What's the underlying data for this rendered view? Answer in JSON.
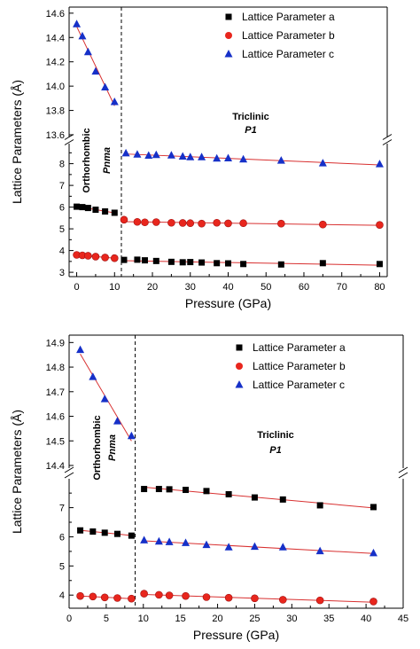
{
  "chart_data": [
    {
      "type": "scatter",
      "xlabel": "Pressure (GPa)",
      "ylabel": "Lattice Parameters (Å)",
      "xlim": [
        -2,
        82
      ],
      "x_ticks": [
        "0",
        "10",
        "20",
        "30",
        "40",
        "50",
        "60",
        "70",
        "80"
      ],
      "y_lower_range": [
        2.8,
        8.8
      ],
      "y_upper_range": [
        13.6,
        14.65
      ],
      "y_lower_ticks": [
        "3",
        "4",
        "5",
        "6",
        "7",
        "8"
      ],
      "y_upper_ticks": [
        "13.6",
        "13.8",
        "14.0",
        "14.2",
        "14.4",
        "14.6"
      ],
      "transition_pressure": 11.8,
      "phase_left": {
        "name": "Orthorhombic",
        "group": "Pnma"
      },
      "phase_right": {
        "name": "Triclinic",
        "group": "P1"
      },
      "legend_position": "top-right",
      "series": [
        {
          "name": "Lattice Parameter a",
          "marker": "square",
          "color": "#000000",
          "x": [
            0,
            1.5,
            3,
            5,
            7.5,
            10,
            12.5,
            16,
            18,
            21,
            25,
            28,
            30,
            33,
            37,
            40,
            44,
            54,
            65,
            80
          ],
          "y": [
            6.02,
            6.0,
            5.96,
            5.88,
            5.8,
            5.74,
            3.57,
            3.58,
            3.55,
            3.52,
            3.48,
            3.46,
            3.47,
            3.45,
            3.42,
            3.41,
            3.38,
            3.36,
            3.42,
            3.38
          ]
        },
        {
          "name": "Lattice Parameter b",
          "marker": "circle",
          "color": "#e8261d",
          "x": [
            0,
            1.5,
            3,
            5,
            7.5,
            10,
            12.5,
            16,
            18,
            21,
            25,
            28,
            30,
            33,
            37,
            40,
            44,
            54,
            65,
            80
          ],
          "y": [
            3.8,
            3.78,
            3.76,
            3.72,
            3.68,
            3.65,
            5.42,
            5.32,
            5.3,
            5.31,
            5.28,
            5.27,
            5.26,
            5.24,
            5.28,
            5.25,
            5.26,
            5.24,
            5.2,
            5.18
          ]
        },
        {
          "name": "Lattice Parameter c",
          "marker": "triangle",
          "color": "#1630c8",
          "x": [
            0,
            1.5,
            3,
            5,
            7.5,
            10,
            13,
            16,
            19,
            21,
            25,
            28,
            30,
            33,
            37,
            40,
            44,
            54,
            65,
            80
          ],
          "y": [
            14.51,
            14.41,
            14.28,
            14.12,
            13.99,
            13.87,
            8.48,
            8.42,
            8.37,
            8.4,
            8.38,
            8.33,
            8.3,
            8.3,
            8.24,
            8.25,
            8.2,
            8.14,
            8.02,
            7.98
          ]
        }
      ]
    },
    {
      "type": "scatter",
      "xlabel": "Pressure (GPa)",
      "ylabel": "Lattice Parameters (Å)",
      "xlim": [
        0,
        45
      ],
      "x_ticks": [
        "0",
        "5",
        "10",
        "15",
        "20",
        "25",
        "30",
        "35",
        "40",
        "45"
      ],
      "y_lower_range": [
        3.55,
        7.9
      ],
      "y_upper_range": [
        14.4,
        14.93
      ],
      "y_lower_ticks": [
        "4",
        "5",
        "6",
        "7"
      ],
      "y_upper_ticks": [
        "14.4",
        "14.5",
        "14.6",
        "14.7",
        "14.8",
        "14.9"
      ],
      "transition_pressure": 8.9,
      "phase_left": {
        "name": "Orthorhombic",
        "group": "Pnma"
      },
      "phase_right": {
        "name": "Triclinic",
        "group": "P1"
      },
      "legend_position": "top-right",
      "series": [
        {
          "name": "Lattice Parameter a",
          "marker": "square",
          "color": "#000000",
          "x": [
            1.5,
            3.2,
            4.8,
            6.5,
            8.4,
            10.1,
            12.1,
            13.5,
            15.7,
            18.5,
            21.5,
            25.0,
            28.8,
            33.8,
            41.0
          ],
          "y": [
            6.22,
            6.18,
            6.14,
            6.1,
            6.04,
            7.64,
            7.64,
            7.63,
            7.61,
            7.57,
            7.46,
            7.35,
            7.28,
            7.08,
            7.02
          ]
        },
        {
          "name": "Lattice Parameter b",
          "marker": "circle",
          "color": "#e8261d",
          "x": [
            1.5,
            3.2,
            4.8,
            6.5,
            8.4,
            10.1,
            12.1,
            13.5,
            15.7,
            18.5,
            21.5,
            25.0,
            28.8,
            33.8,
            41.0
          ],
          "y": [
            3.97,
            3.95,
            3.92,
            3.9,
            3.88,
            4.05,
            4.01,
            3.99,
            3.97,
            3.93,
            3.91,
            3.89,
            3.84,
            3.82,
            3.78
          ]
        },
        {
          "name": "Lattice Parameter c",
          "marker": "triangle",
          "color": "#1630c8",
          "x": [
            1.5,
            3.2,
            4.8,
            6.5,
            8.4,
            10.1,
            12.1,
            13.5,
            15.7,
            18.5,
            21.5,
            25.0,
            28.8,
            33.8,
            41.0
          ],
          "y": [
            14.87,
            14.76,
            14.67,
            14.58,
            14.52,
            5.88,
            5.84,
            5.82,
            5.79,
            5.72,
            5.64,
            5.66,
            5.64,
            5.51,
            5.44
          ]
        }
      ]
    }
  ]
}
